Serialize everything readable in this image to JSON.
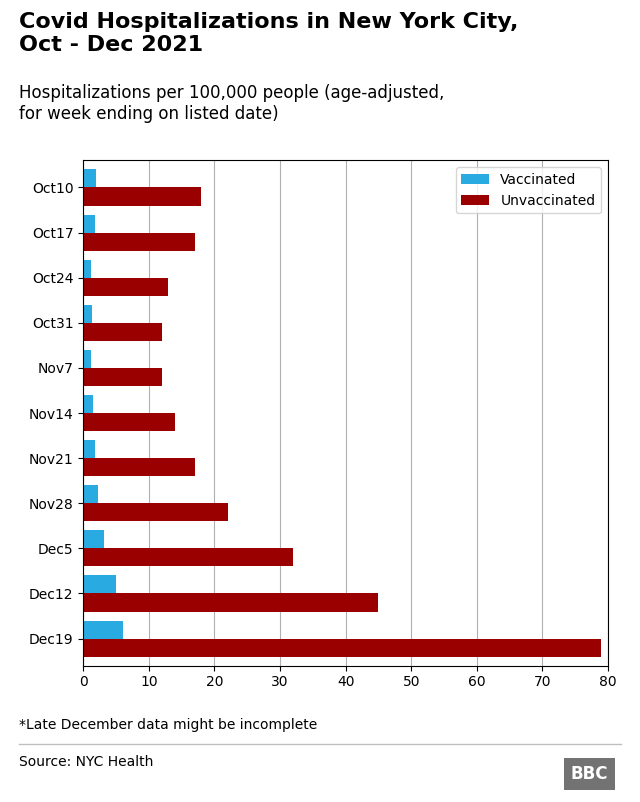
{
  "chart_data": {
    "type": "bar",
    "orientation": "horizontal",
    "title": "Covid Hospitalizations in New York City,\nOct - Dec 2021",
    "subtitle": "Hospitalizations per 100,000 people (age-adjusted,\nfor week ending on listed date)",
    "categories": [
      "Oct10",
      "Oct17",
      "Oct24",
      "Oct31",
      "Nov7",
      "Nov14",
      "Nov21",
      "Nov28",
      "Dec5",
      "Dec12",
      "Dec19"
    ],
    "series": [
      {
        "name": "Vaccinated",
        "color": "#29ABE2",
        "values": [
          2.0,
          1.8,
          1.2,
          1.3,
          1.2,
          1.5,
          1.8,
          2.2,
          3.2,
          5.0,
          6.0
        ]
      },
      {
        "name": "Unvaccinated",
        "color": "#9B0000",
        "values": [
          18.0,
          17.0,
          13.0,
          12.0,
          12.0,
          14.0,
          17.0,
          22.0,
          32.0,
          45.0,
          79.0
        ]
      }
    ],
    "xlim": [
      0,
      80
    ],
    "xticks": [
      0,
      10,
      20,
      30,
      40,
      50,
      60,
      70,
      80
    ],
    "grid": true,
    "legend": "upper right",
    "annotations": [
      "*Late December data might be incomplete",
      "Source: NYC Health",
      "BBC"
    ]
  }
}
